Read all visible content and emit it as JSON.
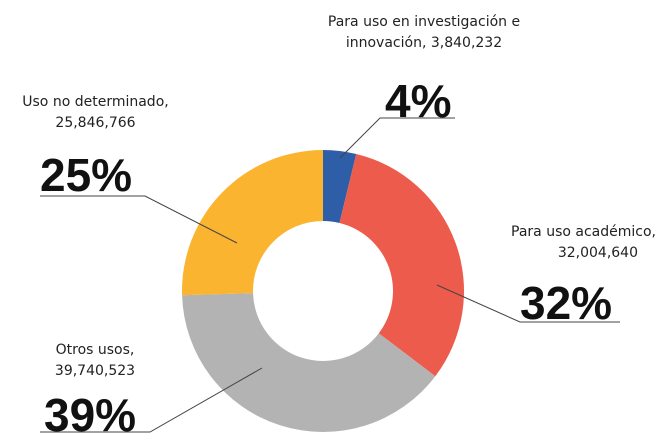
{
  "chart_data": {
    "type": "donut",
    "categories": [
      "Para uso en investigación e innovación,",
      "Para uso académico,",
      "Otros usos,",
      "Uso no determinado,"
    ],
    "values": [
      3840232,
      32004640,
      39740523,
      25846766
    ],
    "value_labels": [
      "3,840,232",
      "32,004,640",
      "39,740,523",
      "25,846,766"
    ],
    "percentages": [
      4,
      32,
      39,
      25
    ],
    "percentage_labels": [
      "4%",
      "32%",
      "39%",
      "25%"
    ],
    "colors": [
      "#2e5ea8",
      "#ec5b4b",
      "#b3b3b3",
      "#fbb430"
    ]
  }
}
